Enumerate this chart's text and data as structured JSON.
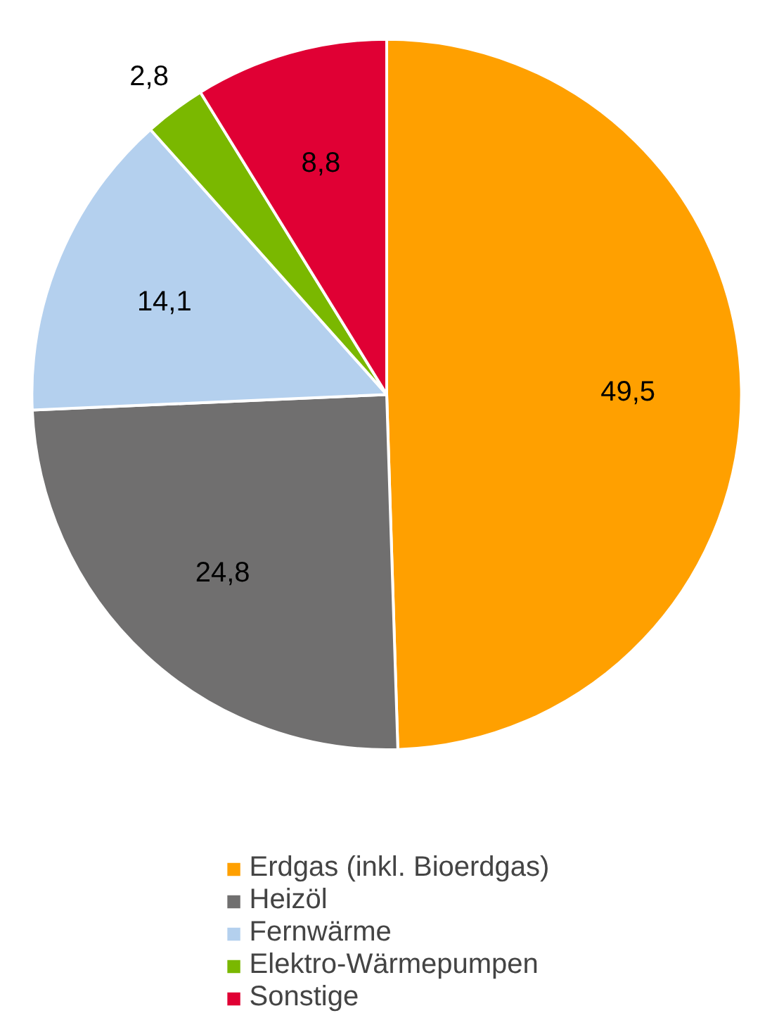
{
  "chart_data": {
    "type": "pie",
    "categories": [
      "Erdgas (inkl. Bioerdgas)",
      "Heizöl",
      "Fernwärme",
      "Elektro-Wärmepumpen",
      "Sonstige"
    ],
    "values": [
      49.5,
      24.8,
      14.1,
      2.8,
      8.8
    ],
    "colors": [
      "#ffa000",
      "#706f6f",
      "#b4d0ee",
      "#7ab800",
      "#e00034"
    ],
    "value_labels": [
      "49,5",
      "24,8",
      "14,1",
      "2,8",
      "8,8"
    ],
    "legend": "bottom"
  }
}
